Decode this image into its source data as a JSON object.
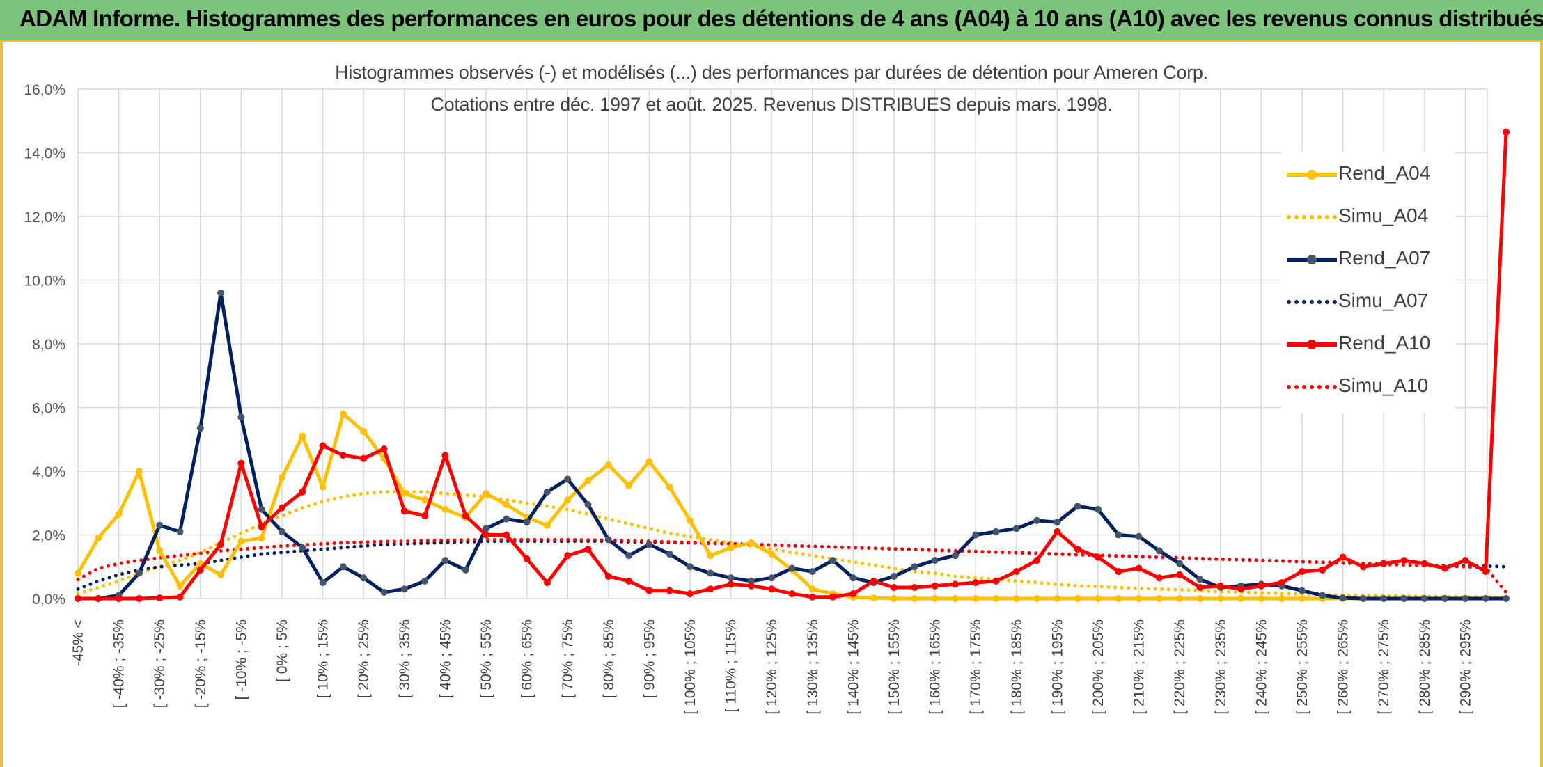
{
  "header": {
    "title": "ADAM Informe. Histogrammes des performances en euros pour des détentions de 4 ans (A04) à 10 ans (A10) avec les revenus connus distribués"
  },
  "chart_data": {
    "type": "line",
    "title": "Histogrammes observés (-) et modélisés (...) des performances par durées de détention pour Ameren Corp.",
    "subtitle": "Cotations entre déc. 1997 et août. 2025. Revenus DISTRIBUES depuis mars. 1998.",
    "xlabel": "",
    "ylabel": "",
    "ylim": [
      0,
      16
    ],
    "y_ticks": [
      "0,0%",
      "2,0%",
      "4,0%",
      "6,0%",
      "8,0%",
      "10,0%",
      "12,0%",
      "14,0%",
      "16,0%"
    ],
    "grid": true,
    "legend_position": "right",
    "x_labels": [
      "-45% <",
      "[ -40% ; -35%",
      "[ -30% ; -25%",
      "[ -20% ; -15%",
      "[ -10% ; -5%",
      "[ 0% ; 5%",
      "[ 10% ; 15%",
      "[ 20% ; 25%",
      "[ 30% ; 35%",
      "[ 40% ; 45%",
      "[ 50% ; 55%",
      "[ 60% ; 65%",
      "[ 70% ; 75%",
      "[ 80% ; 85%",
      "[ 90% ; 95%",
      "[ 100% ; 105%",
      "[ 110% ; 115%",
      "[ 120% ; 125%",
      "[ 130% ; 135%",
      "[ 140% ; 145%",
      "[ 150% ; 155%",
      "[ 160% ; 165%",
      "[ 170% ; 175%",
      "[ 180% ; 185%",
      "[ 190% ; 195%",
      "[ 200% ; 205%",
      "[ 210% ; 215%",
      "[ 220% ; 225%",
      "[ 230% ; 235%",
      "[ 240% ; 245%",
      "[ 250% ; 255%",
      "[ 260% ; 265%",
      "[ 270% ; 275%",
      "[ 280% ; 285%",
      "[ 290% ; 295%"
    ],
    "series": [
      {
        "name": "Rend_A04",
        "color": "#ffc000",
        "style": "solid",
        "values": [
          0.8,
          1.9,
          2.65,
          4.0,
          1.5,
          0.4,
          1.1,
          0.75,
          1.8,
          1.9,
          3.8,
          5.1,
          3.5,
          5.8,
          5.25,
          4.4,
          3.3,
          3.1,
          2.8,
          2.55,
          3.3,
          2.95,
          2.55,
          2.3,
          3.1,
          3.7,
          4.2,
          3.55,
          4.3,
          3.5,
          2.45,
          1.35,
          1.6,
          1.75,
          1.4,
          0.9,
          0.3,
          0.15,
          0.05,
          0.02,
          0,
          0,
          0,
          0,
          0,
          0,
          0,
          0,
          0,
          0,
          0,
          0,
          0,
          0,
          0,
          0,
          0,
          0,
          0,
          0,
          0,
          0,
          0,
          0,
          0,
          0,
          0,
          0,
          0,
          0,
          0
        ]
      },
      {
        "name": "Simu_A04",
        "color": "#ffc000",
        "style": "dotted",
        "values": [
          0.15,
          0.35,
          0.55,
          0.8,
          1.0,
          1.2,
          1.45,
          1.75,
          2.05,
          2.35,
          2.6,
          2.85,
          3.05,
          3.2,
          3.3,
          3.35,
          3.35,
          3.35,
          3.3,
          3.25,
          3.2,
          3.1,
          3.0,
          2.9,
          2.8,
          2.65,
          2.5,
          2.35,
          2.2,
          2.05,
          1.95,
          1.85,
          1.75,
          1.65,
          1.55,
          1.45,
          1.35,
          1.25,
          1.15,
          1.05,
          0.95,
          0.85,
          0.8,
          0.7,
          0.65,
          0.6,
          0.55,
          0.5,
          0.45,
          0.4,
          0.38,
          0.35,
          0.32,
          0.3,
          0.28,
          0.25,
          0.22,
          0.2,
          0.18,
          0.16,
          0.14,
          0.12,
          0.11,
          0.1,
          0.09,
          0.08,
          0.07,
          0.06,
          0.05,
          0.05,
          0.04
        ]
      },
      {
        "name": "Rend_A07",
        "color": "#002060",
        "style": "solid",
        "values": [
          0,
          0,
          0.1,
          0.8,
          2.3,
          2.1,
          5.35,
          9.6,
          5.7,
          2.8,
          2.1,
          1.6,
          0.5,
          1.0,
          0.65,
          0.2,
          0.3,
          0.55,
          1.2,
          0.9,
          2.2,
          2.5,
          2.4,
          3.35,
          3.75,
          2.95,
          1.85,
          1.35,
          1.7,
          1.4,
          1.0,
          0.8,
          0.65,
          0.55,
          0.65,
          0.95,
          0.85,
          1.2,
          0.65,
          0.5,
          0.7,
          1.0,
          1.2,
          1.35,
          2.0,
          2.1,
          2.2,
          2.45,
          2.4,
          2.9,
          2.8,
          2.0,
          1.95,
          1.5,
          1.1,
          0.6,
          0.35,
          0.4,
          0.45,
          0.4,
          0.25,
          0.1,
          0.02,
          0,
          0,
          0,
          0,
          0,
          0,
          0,
          0
        ]
      },
      {
        "name": "Simu_A07",
        "color": "#002060",
        "style": "dotted",
        "values": [
          0.3,
          0.55,
          0.75,
          0.9,
          1.0,
          1.05,
          1.1,
          1.2,
          1.3,
          1.4,
          1.45,
          1.5,
          1.55,
          1.6,
          1.65,
          1.7,
          1.72,
          1.74,
          1.76,
          1.78,
          1.8,
          1.8,
          1.8,
          1.8,
          1.8,
          1.8,
          1.8,
          1.78,
          1.77,
          1.76,
          1.75,
          1.74,
          1.72,
          1.7,
          1.68,
          1.66,
          1.64,
          1.62,
          1.6,
          1.58,
          1.56,
          1.54,
          1.52,
          1.5,
          1.48,
          1.46,
          1.44,
          1.42,
          1.4,
          1.38,
          1.36,
          1.34,
          1.32,
          1.3,
          1.28,
          1.26,
          1.24,
          1.22,
          1.2,
          1.18,
          1.16,
          1.14,
          1.12,
          1.1,
          1.08,
          1.06,
          1.05,
          1.04,
          1.03,
          1.02,
          1.0
        ]
      },
      {
        "name": "Rend_A10",
        "color": "#ff0000",
        "style": "solid",
        "values": [
          0,
          0,
          0,
          0,
          0.02,
          0.05,
          0.9,
          1.7,
          4.25,
          2.25,
          2.85,
          3.35,
          4.8,
          4.5,
          4.4,
          4.7,
          2.75,
          2.6,
          4.5,
          2.6,
          2.0,
          2.0,
          1.25,
          0.5,
          1.35,
          1.55,
          0.7,
          0.55,
          0.25,
          0.25,
          0.15,
          0.3,
          0.45,
          0.4,
          0.3,
          0.15,
          0.05,
          0.05,
          0.15,
          0.55,
          0.35,
          0.35,
          0.4,
          0.45,
          0.5,
          0.55,
          0.85,
          1.2,
          2.1,
          1.55,
          1.3,
          0.85,
          0.95,
          0.65,
          0.75,
          0.35,
          0.4,
          0.3,
          0.4,
          0.5,
          0.85,
          0.9,
          1.3,
          1.0,
          1.1,
          1.2,
          1.1,
          0.95,
          1.2,
          0.85,
          14.65
        ]
      },
      {
        "name": "Simu_A10",
        "color": "#ff0000",
        "style": "dotted",
        "values": [
          0.6,
          0.95,
          1.1,
          1.2,
          1.28,
          1.35,
          1.42,
          1.5,
          1.55,
          1.6,
          1.65,
          1.68,
          1.72,
          1.75,
          1.77,
          1.79,
          1.8,
          1.82,
          1.83,
          1.84,
          1.85,
          1.85,
          1.85,
          1.85,
          1.85,
          1.84,
          1.83,
          1.82,
          1.8,
          1.78,
          1.76,
          1.74,
          1.72,
          1.7,
          1.68,
          1.66,
          1.64,
          1.62,
          1.6,
          1.58,
          1.56,
          1.54,
          1.52,
          1.5,
          1.48,
          1.46,
          1.44,
          1.42,
          1.4,
          1.38,
          1.36,
          1.34,
          1.32,
          1.3,
          1.28,
          1.26,
          1.24,
          1.22,
          1.2,
          1.18,
          1.16,
          1.14,
          1.12,
          1.1,
          1.08,
          1.06,
          1.04,
          1.02,
          1.0,
          0.98,
          0.2
        ]
      }
    ]
  }
}
